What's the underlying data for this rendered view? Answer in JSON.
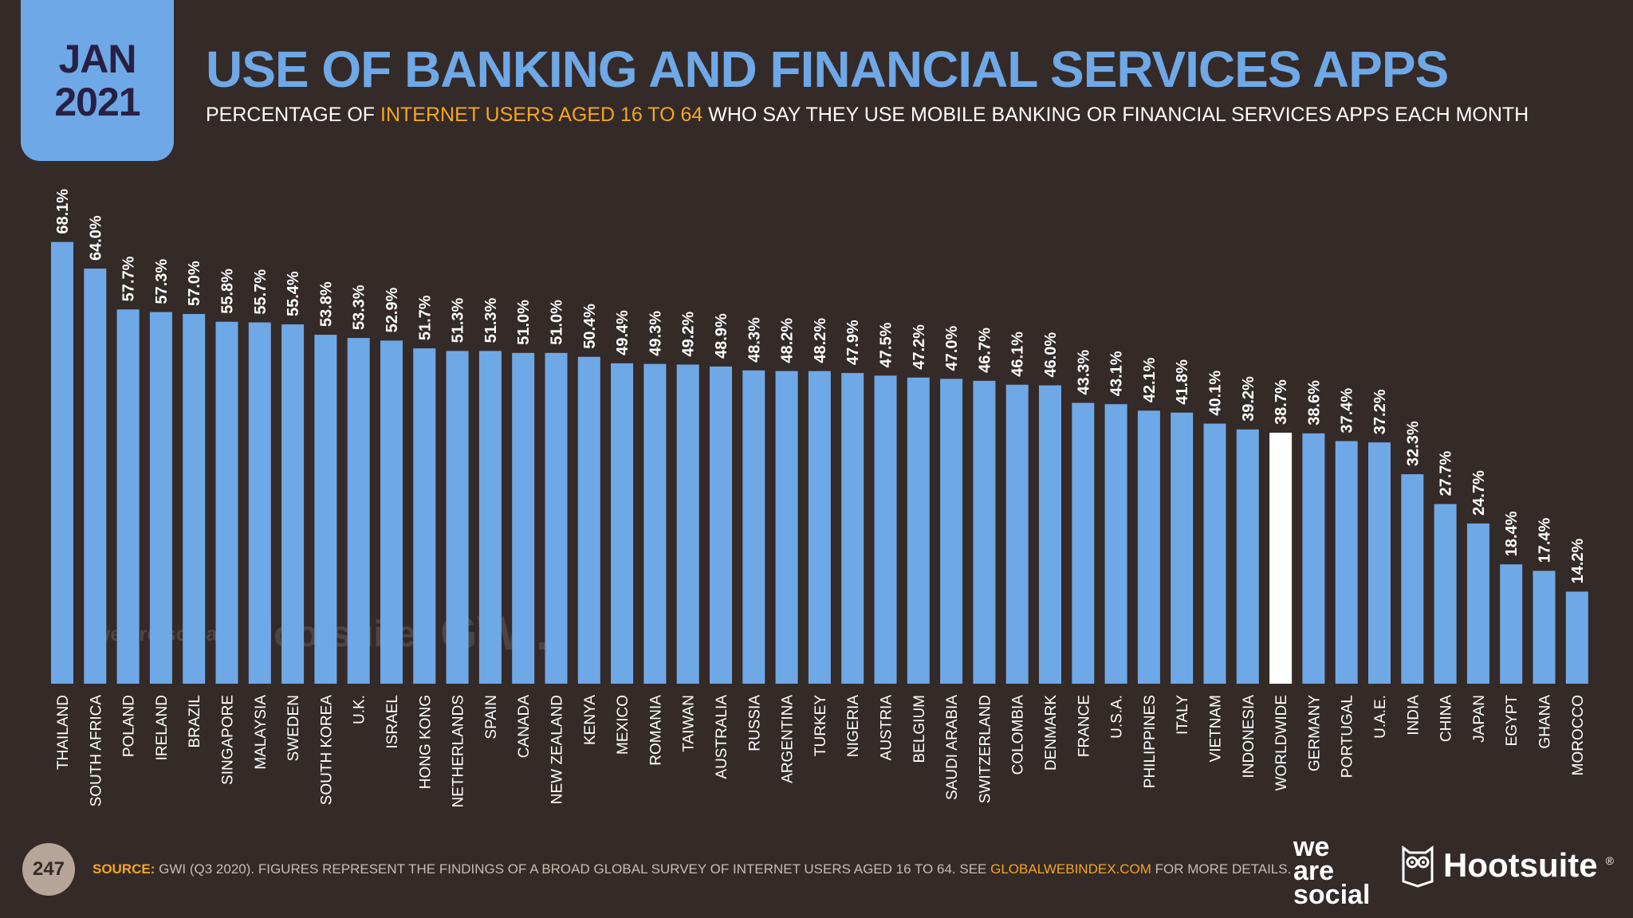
{
  "header": {
    "month": "JAN",
    "year": "2021",
    "title": "USE OF BANKING AND FINANCIAL SERVICES APPS",
    "subtitle_pre": "PERCENTAGE OF ",
    "subtitle_highlight": "INTERNET USERS AGED 16 TO 64",
    "subtitle_post": " WHO SAY THEY USE MOBILE BANKING OR FINANCIAL SERVICES APPS EACH MONTH"
  },
  "colors": {
    "background": "#342a28",
    "bar": "#6fa8e6",
    "highlight_bar": "#ffffff",
    "accent": "#f5a623",
    "value_text": "#ffffff",
    "category_text": "#ffffff"
  },
  "chart_data": {
    "type": "bar",
    "title": "USE OF BANKING AND FINANCIAL SERVICES APPS",
    "xlabel": "",
    "ylabel": "",
    "unit": "%",
    "ylim": [
      0,
      100
    ],
    "highlight": "WORLDWIDE",
    "categories": [
      "THAILAND",
      "SOUTH AFRICA",
      "POLAND",
      "IRELAND",
      "BRAZIL",
      "SINGAPORE",
      "MALAYSIA",
      "SWEDEN",
      "SOUTH KOREA",
      "U.K.",
      "ISRAEL",
      "HONG KONG",
      "NETHERLANDS",
      "SPAIN",
      "CANADA",
      "NEW ZEALAND",
      "KENYA",
      "MEXICO",
      "ROMANIA",
      "TAIWAN",
      "AUSTRALIA",
      "RUSSIA",
      "ARGENTINA",
      "TURKEY",
      "NIGERIA",
      "AUSTRIA",
      "BELGIUM",
      "SAUDI ARABIA",
      "SWITZERLAND",
      "COLOMBIA",
      "DENMARK",
      "FRANCE",
      "U.S.A.",
      "PHILIPPINES",
      "ITALY",
      "VIETNAM",
      "INDONESIA",
      "WORLDWIDE",
      "GERMANY",
      "PORTUGAL",
      "U.A.E.",
      "INDIA",
      "CHINA",
      "JAPAN",
      "EGYPT",
      "GHANA",
      "MOROCCO"
    ],
    "values": [
      68.1,
      64.0,
      57.7,
      57.3,
      57.0,
      55.8,
      55.7,
      55.4,
      53.8,
      53.3,
      52.9,
      51.7,
      51.3,
      51.3,
      51.0,
      51.0,
      50.4,
      49.4,
      49.3,
      49.2,
      48.9,
      48.3,
      48.2,
      48.2,
      47.9,
      47.5,
      47.2,
      47.0,
      46.7,
      46.1,
      46.0,
      43.3,
      43.1,
      42.1,
      41.8,
      40.1,
      39.2,
      38.7,
      38.6,
      37.4,
      37.2,
      32.3,
      27.7,
      24.7,
      18.4,
      17.4,
      14.2
    ],
    "labels": [
      "68.1%",
      "64.0%",
      "57.7%",
      "57.3%",
      "57.0%",
      "55.8%",
      "55.7%",
      "55.4%",
      "53.8%",
      "53.3%",
      "52.9%",
      "51.7%",
      "51.3%",
      "51.3%",
      "51.0%",
      "51.0%",
      "50.4%",
      "49.4%",
      "49.3%",
      "49.2%",
      "48.9%",
      "48.3%",
      "48.2%",
      "48.2%",
      "47.9%",
      "47.5%",
      "47.2%",
      "47.0%",
      "46.7%",
      "46.1%",
      "46.0%",
      "43.3%",
      "43.1%",
      "42.1%",
      "41.8%",
      "40.1%",
      "39.2%",
      "38.7%",
      "38.6%",
      "37.4%",
      "37.2%",
      "32.3%",
      "27.7%",
      "24.7%",
      "18.4%",
      "17.4%",
      "14.2%"
    ]
  },
  "watermark": {
    "was": "we are social",
    "hootsuite": "Hootsuite",
    "gwi": "GWI."
  },
  "footer": {
    "page_number": "247",
    "source_label": "SOURCE:",
    "source_text": " GWI (Q3 2020). FIGURES REPRESENT THE FINDINGS OF A BROAD GLOBAL SURVEY OF INTERNET USERS AGED 16 TO 64. SEE ",
    "source_link": "GLOBALWEBINDEX.COM",
    "source_end": " FOR MORE DETAILS.",
    "logo_was_1": "we",
    "logo_was_2": "are",
    "logo_was_3": "social",
    "logo_hootsuite": "Hootsuite",
    "logo_hootsuite_mark": "®"
  }
}
